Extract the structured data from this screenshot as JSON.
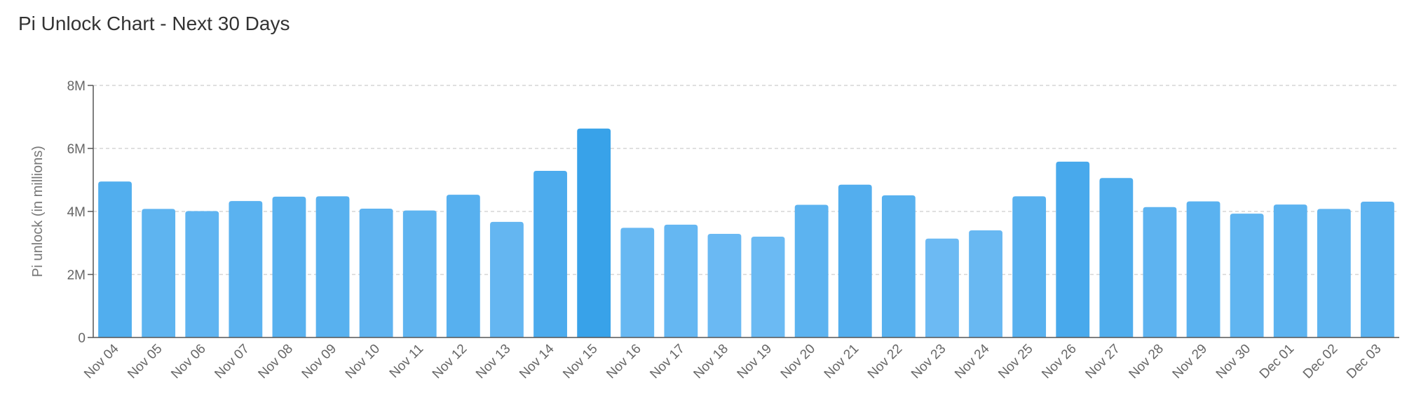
{
  "chart_data": {
    "type": "bar",
    "title": "Pi Unlock Chart - Next 30 Days",
    "ylabel": "Pi unlock (in millions)",
    "xlabel": "",
    "ylim": [
      0,
      8000000
    ],
    "yticks": [
      0,
      2000000,
      4000000,
      6000000,
      8000000
    ],
    "ytick_labels": [
      "0",
      "2M",
      "4M",
      "6M",
      "8M"
    ],
    "grid": true,
    "bar_color_low": "#6cbaf3",
    "bar_color_high": "#38a2e9",
    "categories": [
      "Nov 04",
      "Nov 05",
      "Nov 06",
      "Nov 07",
      "Nov 08",
      "Nov 09",
      "Nov 10",
      "Nov 11",
      "Nov 12",
      "Nov 13",
      "Nov 14",
      "Nov 15",
      "Nov 16",
      "Nov 17",
      "Nov 18",
      "Nov 19",
      "Nov 20",
      "Nov 21",
      "Nov 22",
      "Nov 23",
      "Nov 24",
      "Nov 25",
      "Nov 26",
      "Nov 27",
      "Nov 28",
      "Nov 29",
      "Nov 30",
      "Dec 01",
      "Dec 02",
      "Dec 03"
    ],
    "values": [
      4950000,
      4080000,
      4010000,
      4330000,
      4470000,
      4480000,
      4090000,
      4030000,
      4530000,
      3670000,
      5290000,
      6630000,
      3480000,
      3580000,
      3290000,
      3200000,
      4210000,
      4850000,
      4510000,
      3140000,
      3400000,
      4480000,
      5580000,
      5060000,
      4140000,
      4320000,
      3930000,
      4220000,
      4080000,
      4310000
    ]
  }
}
